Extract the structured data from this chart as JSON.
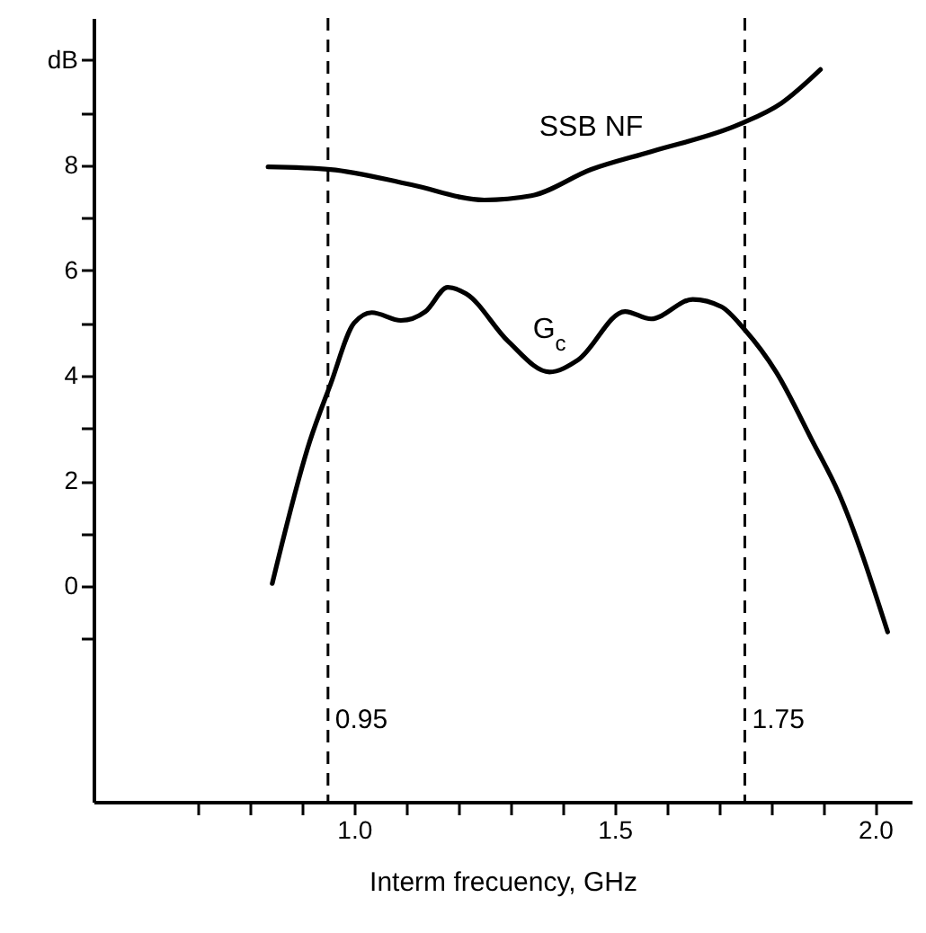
{
  "chart_data": {
    "type": "line",
    "xlabel": "Interm frecuency, GHz",
    "xlim": [
      0.5,
      2.07
    ],
    "ylim": [
      -4.1,
      10.8
    ],
    "xticks": [
      {
        "value": 0.7,
        "label": null
      },
      {
        "value": 0.8,
        "label": null
      },
      {
        "value": 0.9,
        "label": null
      },
      {
        "value": 1.0,
        "label": "1.0"
      },
      {
        "value": 1.1,
        "label": null
      },
      {
        "value": 1.2,
        "label": null
      },
      {
        "value": 1.3,
        "label": null
      },
      {
        "value": 1.4,
        "label": null
      },
      {
        "value": 1.5,
        "label": "1.5"
      },
      {
        "value": 1.6,
        "label": null
      },
      {
        "value": 1.7,
        "label": null
      },
      {
        "value": 1.8,
        "label": null
      },
      {
        "value": 1.9,
        "label": null
      },
      {
        "value": 2.0,
        "label": "2.0"
      }
    ],
    "yticks": [
      {
        "value": -1,
        "label": null
      },
      0,
      {
        "value": 1,
        "label": null
      },
      2,
      {
        "value": 3,
        "label": null
      },
      4,
      {
        "value": 5,
        "label": null
      },
      6,
      {
        "value": 7,
        "label": null
      },
      8,
      {
        "value": 9,
        "label": null
      },
      {
        "value": 10,
        "label": "dB"
      }
    ],
    "grid": false,
    "line_style": "solid",
    "series": [
      {
        "name": "SSB NF",
        "color": "#000000",
        "x": [
          0.835,
          0.955,
          1.11,
          1.25,
          1.34,
          1.455,
          1.57,
          1.74,
          1.82,
          1.895
        ],
        "values": [
          7.97,
          7.92,
          7.63,
          7.34,
          7.42,
          7.92,
          8.26,
          8.78,
          9.18,
          9.82
        ]
      },
      {
        "name": "G$_{c}$",
        "color": "#000000",
        "x": [
          0.843,
          0.915,
          0.955,
          1.0,
          1.034,
          1.09,
          1.137,
          1.18,
          1.215,
          1.296,
          1.375,
          1.43,
          1.52,
          1.57,
          1.65,
          1.705,
          1.75,
          1.81,
          1.88,
          1.93,
          2.024
        ],
        "values": [
          0.05,
          2.75,
          3.84,
          5.0,
          5.2,
          5.05,
          5.22,
          5.68,
          5.56,
          4.65,
          4.07,
          4.3,
          5.22,
          5.08,
          5.45,
          5.31,
          4.87,
          4.07,
          2.75,
          1.77,
          -0.87
        ]
      }
    ],
    "ref_lines": [
      {
        "axis": "x",
        "value": 0.95,
        "label": "0.95",
        "line_style": "dashed"
      },
      {
        "axis": "x",
        "value": 1.75,
        "label": "1.75",
        "line_style": "dashed"
      }
    ]
  }
}
